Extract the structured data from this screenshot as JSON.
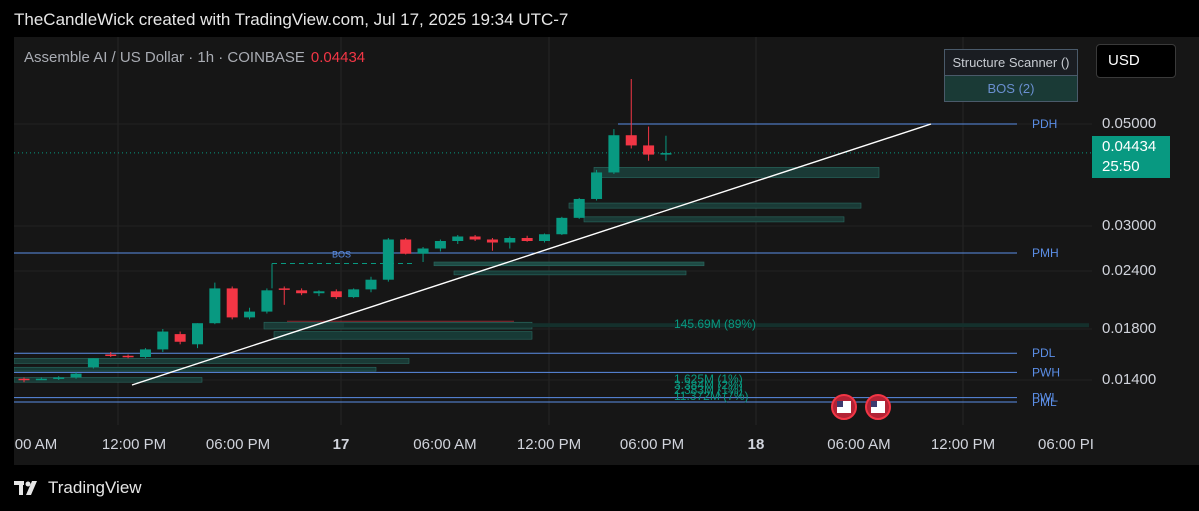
{
  "header": {
    "text": "TheCandleWick created with TradingView.com, Jul 17, 2025 19:34 UTC-7"
  },
  "legend": {
    "symbol": "Assemble AI / US Dollar · 1h · COINBASE",
    "price": "0.04434"
  },
  "scanner": {
    "title": "Structure Scanner ()",
    "bos": "BOS (2)"
  },
  "currency": "USD",
  "price_tag": {
    "price": "0.04434",
    "countdown": "25:50"
  },
  "footer": {
    "brand": "TradingView"
  },
  "colors": {
    "up": "#089981",
    "down": "#f23645",
    "level": "#5b8ee6",
    "trend": "#ffffff"
  },
  "chart_data": {
    "type": "candlestick",
    "title": "Assemble AI / US Dollar · 1h · COINBASE",
    "y_ticks": [
      "0.05000",
      "0.03000",
      "0.02400",
      "0.01800",
      "0.01400"
    ],
    "x_ticks": [
      {
        "label": "00 AM",
        "bold": false
      },
      {
        "label": "12:00 PM",
        "bold": false
      },
      {
        "label": "06:00 PM",
        "bold": false
      },
      {
        "label": "17",
        "bold": true
      },
      {
        "label": "06:00 AM",
        "bold": false
      },
      {
        "label": "12:00 PM",
        "bold": false
      },
      {
        "label": "06:00 PM",
        "bold": false
      },
      {
        "label": "18",
        "bold": true
      },
      {
        "label": "06:00 AM",
        "bold": false
      },
      {
        "label": "12:00 PM",
        "bold": false
      },
      {
        "label": "06:00 PI",
        "bold": false
      }
    ],
    "levels": [
      {
        "label": "PDH",
        "value": 0.05
      },
      {
        "label": "PMH",
        "value": 0.0264
      },
      {
        "label": "PDL",
        "value": 0.0161
      },
      {
        "label": "PWH",
        "value": 0.0146
      },
      {
        "label": "PWL",
        "value": 0.0132
      },
      {
        "label": "PML",
        "value": 0.013
      }
    ],
    "volume_labels": [
      "145.69M (89%)",
      "1.625M (1%)",
      "3.384M (2%)",
      "2.383M (1%)",
      "11.372M (7%)"
    ],
    "bos_label": "BOS",
    "candles": [
      {
        "o": 0.0141,
        "h": 0.0142,
        "l": 0.0139,
        "c": 0.014
      },
      {
        "o": 0.0141,
        "h": 0.0142,
        "l": 0.014,
        "c": 0.0141
      },
      {
        "o": 0.0141,
        "h": 0.0143,
        "l": 0.014,
        "c": 0.0142
      },
      {
        "o": 0.0142,
        "h": 0.0146,
        "l": 0.0141,
        "c": 0.0145
      },
      {
        "o": 0.015,
        "h": 0.0157,
        "l": 0.0149,
        "c": 0.0157
      },
      {
        "o": 0.016,
        "h": 0.0162,
        "l": 0.0158,
        "c": 0.0159
      },
      {
        "o": 0.0159,
        "h": 0.016,
        "l": 0.0157,
        "c": 0.0158
      },
      {
        "o": 0.0158,
        "h": 0.0165,
        "l": 0.0157,
        "c": 0.0164
      },
      {
        "o": 0.0164,
        "h": 0.018,
        "l": 0.0162,
        "c": 0.0178
      },
      {
        "o": 0.0176,
        "h": 0.0178,
        "l": 0.0168,
        "c": 0.017
      },
      {
        "o": 0.0168,
        "h": 0.0186,
        "l": 0.0165,
        "c": 0.0186
      },
      {
        "o": 0.0186,
        "h": 0.0228,
        "l": 0.0185,
        "c": 0.0222
      },
      {
        "o": 0.0222,
        "h": 0.0224,
        "l": 0.019,
        "c": 0.0192
      },
      {
        "o": 0.0192,
        "h": 0.0202,
        "l": 0.019,
        "c": 0.0198
      },
      {
        "o": 0.0198,
        "h": 0.0222,
        "l": 0.0196,
        "c": 0.022
      },
      {
        "o": 0.0222,
        "h": 0.0224,
        "l": 0.0205,
        "c": 0.0221
      },
      {
        "o": 0.022,
        "h": 0.0222,
        "l": 0.0215,
        "c": 0.0217
      },
      {
        "o": 0.0217,
        "h": 0.022,
        "l": 0.0214,
        "c": 0.0219
      },
      {
        "o": 0.0219,
        "h": 0.0221,
        "l": 0.0211,
        "c": 0.0213
      },
      {
        "o": 0.0213,
        "h": 0.0222,
        "l": 0.0212,
        "c": 0.0221
      },
      {
        "o": 0.0221,
        "h": 0.0234,
        "l": 0.0218,
        "c": 0.0231
      },
      {
        "o": 0.0231,
        "h": 0.0284,
        "l": 0.0229,
        "c": 0.0282
      },
      {
        "o": 0.0282,
        "h": 0.0284,
        "l": 0.0262,
        "c": 0.0263
      },
      {
        "o": 0.0263,
        "h": 0.0272,
        "l": 0.0252,
        "c": 0.027
      },
      {
        "o": 0.027,
        "h": 0.0282,
        "l": 0.0266,
        "c": 0.028
      },
      {
        "o": 0.028,
        "h": 0.0288,
        "l": 0.0276,
        "c": 0.0286
      },
      {
        "o": 0.0286,
        "h": 0.0288,
        "l": 0.028,
        "c": 0.0282
      },
      {
        "o": 0.0282,
        "h": 0.0284,
        "l": 0.0267,
        "c": 0.0278
      },
      {
        "o": 0.0278,
        "h": 0.0286,
        "l": 0.027,
        "c": 0.0284
      },
      {
        "o": 0.0284,
        "h": 0.0287,
        "l": 0.0279,
        "c": 0.028
      },
      {
        "o": 0.028,
        "h": 0.029,
        "l": 0.0278,
        "c": 0.0289
      },
      {
        "o": 0.0289,
        "h": 0.0318,
        "l": 0.0288,
        "c": 0.0316
      },
      {
        "o": 0.0316,
        "h": 0.0355,
        "l": 0.0314,
        "c": 0.0353
      },
      {
        "o": 0.0353,
        "h": 0.041,
        "l": 0.035,
        "c": 0.0405
      },
      {
        "o": 0.0405,
        "h": 0.049,
        "l": 0.0402,
        "c": 0.0478
      },
      {
        "o": 0.0478,
        "h": 0.059,
        "l": 0.0452,
        "c": 0.0458
      },
      {
        "o": 0.0458,
        "h": 0.0495,
        "l": 0.0428,
        "c": 0.044
      },
      {
        "o": 0.044,
        "h": 0.0477,
        "l": 0.0428,
        "c": 0.0443
      }
    ]
  }
}
